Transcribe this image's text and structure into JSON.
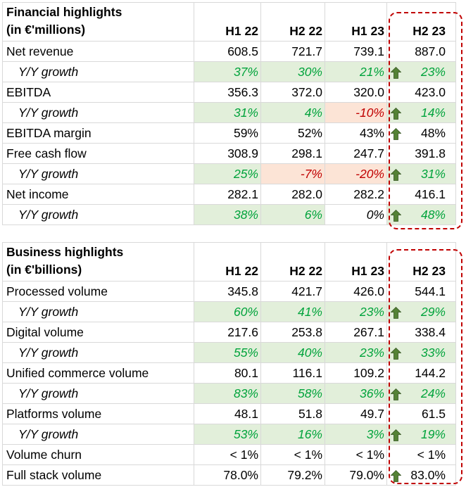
{
  "financial": {
    "title_line1": "Financial highlights",
    "title_line2": "(in €'millions)",
    "periods": [
      "H1 22",
      "H2 22",
      "H1 23",
      "H2 23"
    ],
    "rows": [
      {
        "label": "Net revenue",
        "type": "value",
        "values": [
          "608.5",
          "721.7",
          "739.1",
          "887.0"
        ],
        "arrow": false
      },
      {
        "label": "Y/Y growth",
        "type": "growth",
        "values": [
          "37%",
          "30%",
          "21%",
          "23%"
        ],
        "tones": [
          "pos",
          "pos",
          "pos",
          "pos"
        ],
        "arrow": true
      },
      {
        "label": "EBITDA",
        "type": "value",
        "values": [
          "356.3",
          "372.0",
          "320.0",
          "423.0"
        ],
        "arrow": false
      },
      {
        "label": "Y/Y growth",
        "type": "growth",
        "values": [
          "31%",
          "4%",
          "-10%",
          "14%"
        ],
        "tones": [
          "pos",
          "pos",
          "neg",
          "pos"
        ],
        "arrow": true
      },
      {
        "label": "EBITDA margin",
        "type": "value",
        "values": [
          "59%",
          "52%",
          "43%",
          "48%"
        ],
        "arrow": true
      },
      {
        "label": "Free cash flow",
        "type": "value",
        "values": [
          "308.9",
          "298.1",
          "247.7",
          "391.8"
        ],
        "arrow": false
      },
      {
        "label": "Y/Y growth",
        "type": "growth",
        "values": [
          "25%",
          "-7%",
          "-20%",
          "31%"
        ],
        "tones": [
          "pos",
          "neg",
          "neg",
          "pos"
        ],
        "arrow": true
      },
      {
        "label": "Net income",
        "type": "value",
        "values": [
          "282.1",
          "282.0",
          "282.2",
          "416.1"
        ],
        "arrow": false
      },
      {
        "label": "Y/Y growth",
        "type": "growth",
        "values": [
          "38%",
          "6%",
          "0%",
          "48%"
        ],
        "tones": [
          "pos",
          "pos",
          "zero",
          "pos"
        ],
        "arrow": true
      }
    ]
  },
  "business": {
    "title_line1": "Business highlights",
    "title_line2": "(in €'billions)",
    "periods": [
      "H1 22",
      "H2 22",
      "H1 23",
      "H2 23"
    ],
    "rows": [
      {
        "label": "Processed volume",
        "type": "value",
        "values": [
          "345.8",
          "421.7",
          "426.0",
          "544.1"
        ],
        "arrow": false
      },
      {
        "label": "Y/Y growth",
        "type": "growth",
        "values": [
          "60%",
          "41%",
          "23%",
          "29%"
        ],
        "tones": [
          "pos",
          "pos",
          "pos",
          "pos"
        ],
        "arrow": true
      },
      {
        "label": "Digital volume",
        "type": "value",
        "values": [
          "217.6",
          "253.8",
          "267.1",
          "338.4"
        ],
        "arrow": false
      },
      {
        "label": "Y/Y growth",
        "type": "growth",
        "values": [
          "55%",
          "40%",
          "23%",
          "33%"
        ],
        "tones": [
          "pos",
          "pos",
          "pos",
          "pos"
        ],
        "arrow": true
      },
      {
        "label": "Unified commerce volume",
        "type": "value",
        "values": [
          "80.1",
          "116.1",
          "109.2",
          "144.2"
        ],
        "arrow": false
      },
      {
        "label": "Y/Y growth",
        "type": "growth",
        "values": [
          "83%",
          "58%",
          "36%",
          "24%"
        ],
        "tones": [
          "pos",
          "pos",
          "pos",
          "pos"
        ],
        "arrow": true
      },
      {
        "label": "Platforms volume",
        "type": "value",
        "values": [
          "48.1",
          "51.8",
          "49.7",
          "61.5"
        ],
        "arrow": false
      },
      {
        "label": "Y/Y growth",
        "type": "growth",
        "values": [
          "53%",
          "16%",
          "3%",
          "19%"
        ],
        "tones": [
          "pos",
          "pos",
          "pos",
          "pos"
        ],
        "arrow": true
      },
      {
        "label": "Volume churn",
        "type": "value",
        "values": [
          "< 1%",
          "< 1%",
          "< 1%",
          "< 1%"
        ],
        "arrow": false
      },
      {
        "label": "Full stack volume",
        "type": "value",
        "values": [
          "78.0%",
          "79.2%",
          "79.0%",
          "83.0%"
        ],
        "arrow": true
      }
    ]
  },
  "colors": {
    "positive_text": "#00a33b",
    "positive_fill": "#e2efda",
    "negative_text": "#c00000",
    "negative_fill": "#fce4d6",
    "highlight_border": "#c00000",
    "arrow_fill": "#548235"
  },
  "icons": {
    "growth_arrow": "up-arrow-icon"
  }
}
